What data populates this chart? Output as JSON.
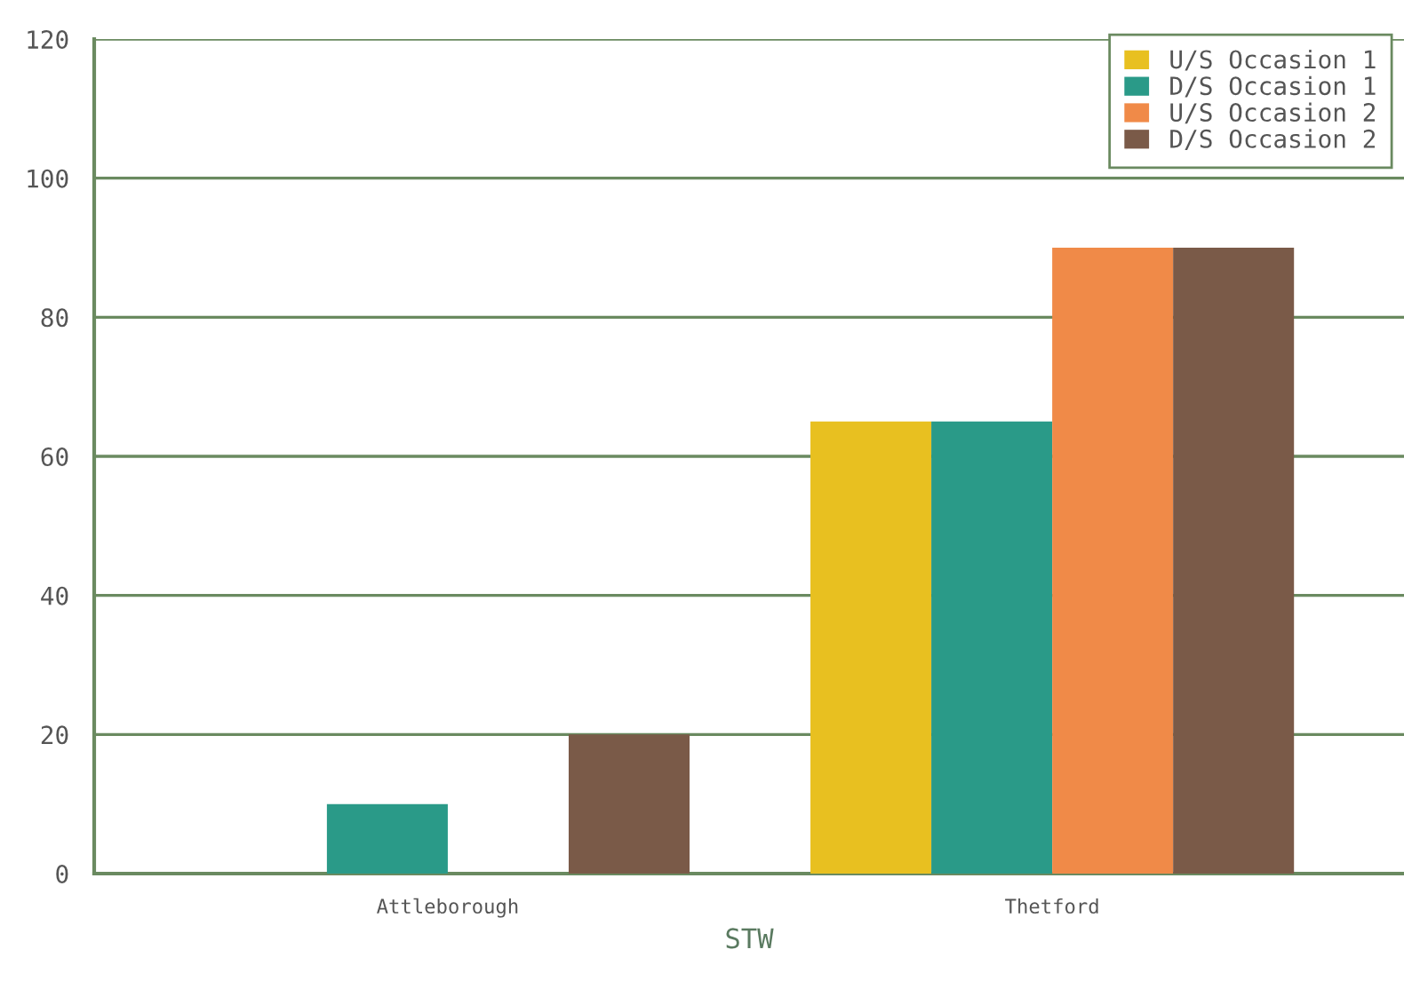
{
  "chart_data": {
    "type": "bar",
    "xlabel": "STW",
    "categories": [
      "Attleborough",
      "Thetford"
    ],
    "series": [
      {
        "name": "U/S Occasion 1",
        "color": "#e8c020",
        "values": [
          null,
          65
        ]
      },
      {
        "name": "D/S Occasion 1",
        "color": "#2a9a88",
        "values": [
          10,
          65
        ]
      },
      {
        "name": "U/S Occasion 2",
        "color": "#f08a48",
        "values": [
          null,
          90
        ]
      },
      {
        "name": "D/S Occasion 2",
        "color": "#7a5a48",
        "values": [
          20,
          90
        ]
      }
    ],
    "ylim": [
      0,
      120
    ],
    "yticks": [
      0,
      20,
      40,
      60,
      80,
      100,
      120
    ],
    "grid": "y",
    "legend": "top right"
  }
}
